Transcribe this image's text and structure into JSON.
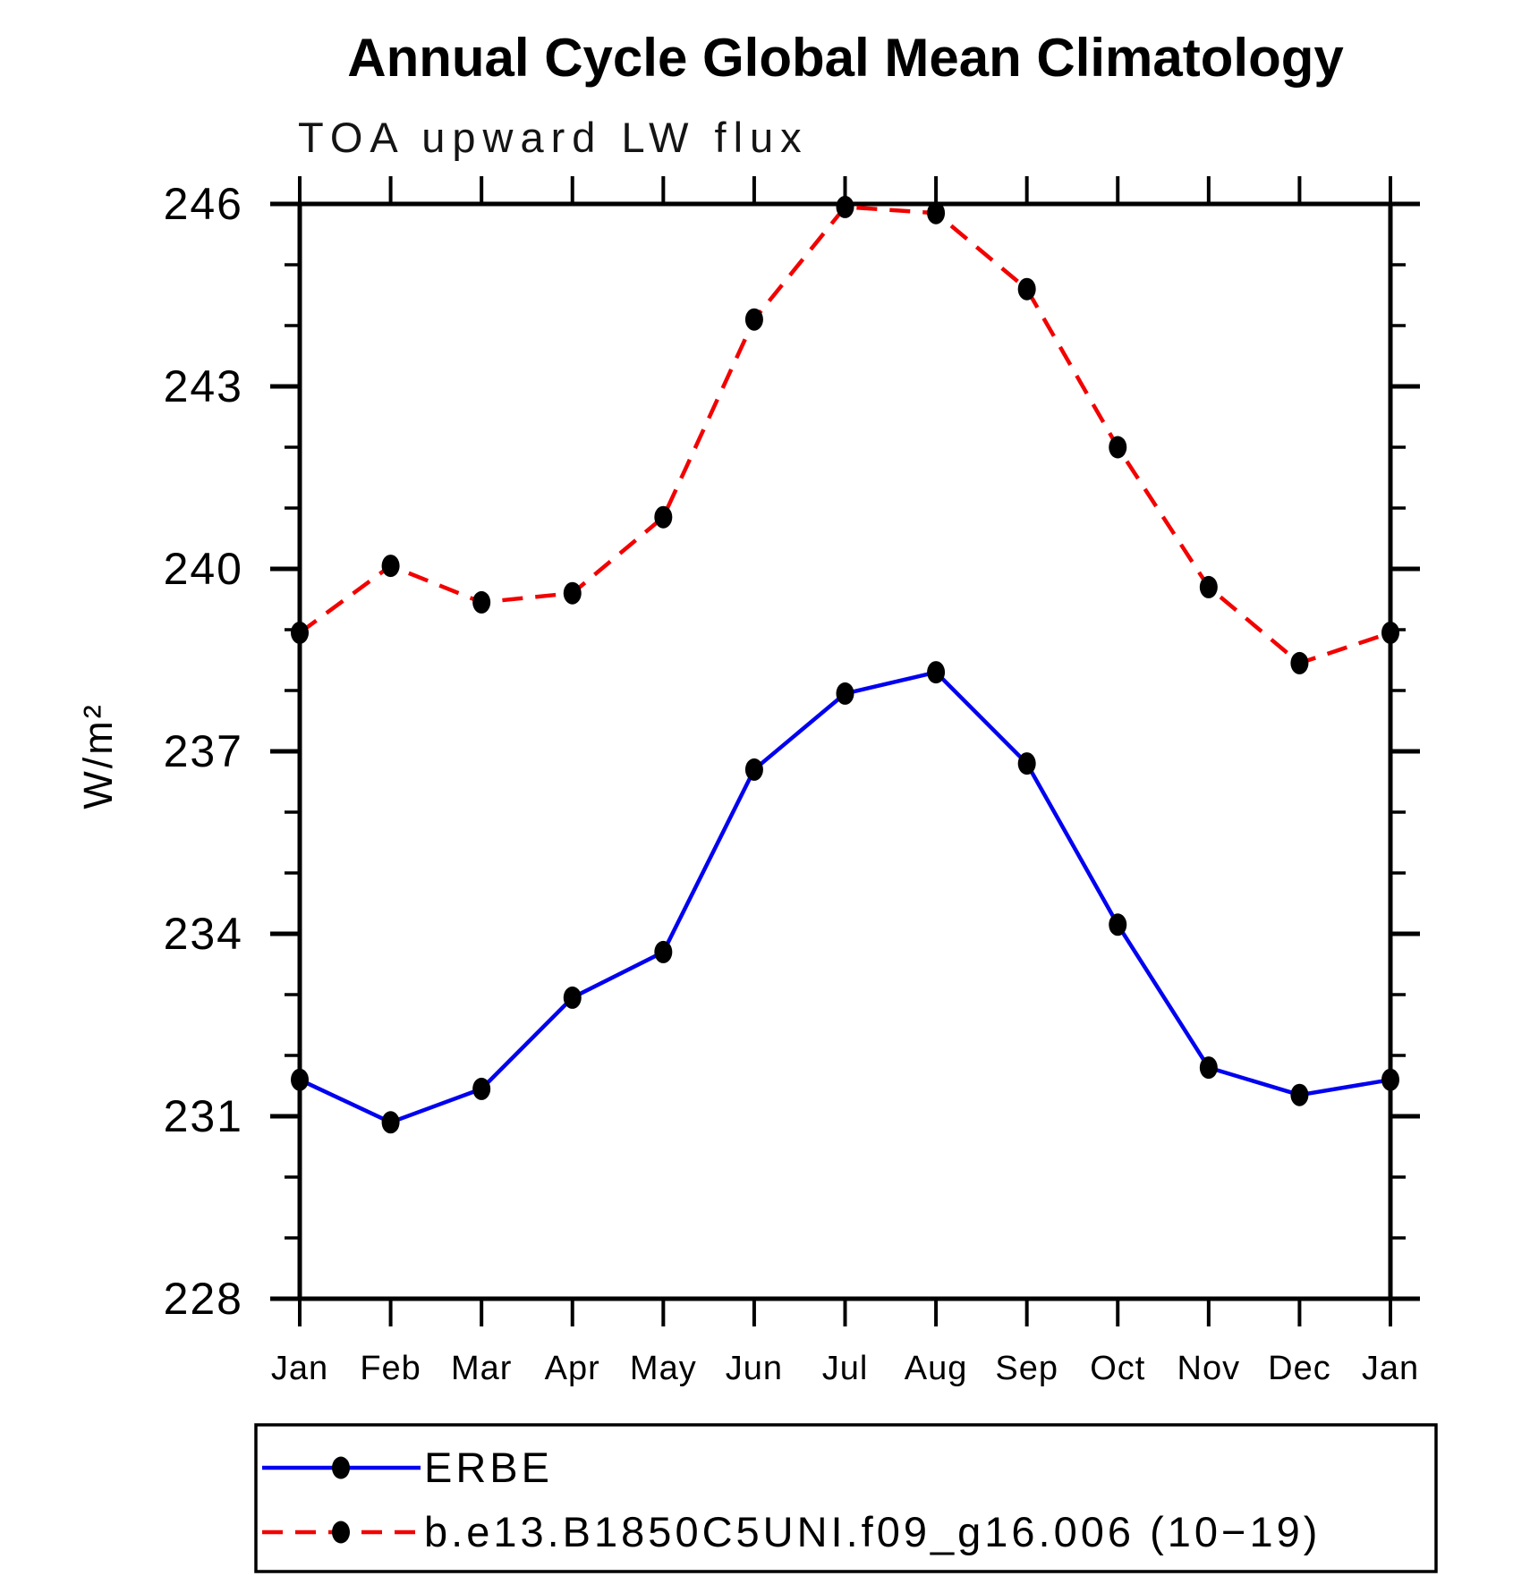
{
  "chart_data": {
    "type": "line",
    "title": "Annual Cycle Global Mean Climatology",
    "subtitle": "TOA upward LW flux",
    "ylabel": "W/m²",
    "xlabel": "",
    "categories": [
      "Jan",
      "Feb",
      "Mar",
      "Apr",
      "May",
      "Jun",
      "Jul",
      "Aug",
      "Sep",
      "Oct",
      "Nov",
      "Dec",
      "Jan"
    ],
    "ylim": [
      228,
      246
    ],
    "y_major_ticks": [
      228,
      231,
      234,
      237,
      240,
      243,
      246
    ],
    "y_minor_step": 1,
    "grid": "off",
    "legend_position": "bottom-left-box",
    "frame_color": "#000000",
    "marker_shape": "filled-circle",
    "series": [
      {
        "name": "ERBE",
        "color": "#0202f0",
        "line_style": "solid",
        "marker_color": "#000000",
        "values": [
          231.6,
          230.9,
          231.45,
          232.95,
          233.7,
          236.7,
          237.95,
          238.3,
          236.8,
          234.15,
          231.8,
          231.35,
          231.6
        ]
      },
      {
        "name": "b.e13.B1850C5UNI.f09_g16.006 (10−19)",
        "color": "#f20200",
        "line_style": "dashed",
        "marker_color": "#000000",
        "values": [
          238.95,
          240.05,
          239.45,
          239.6,
          240.85,
          244.1,
          245.95,
          245.85,
          244.6,
          242.0,
          239.7,
          238.45,
          238.95
        ]
      }
    ]
  }
}
